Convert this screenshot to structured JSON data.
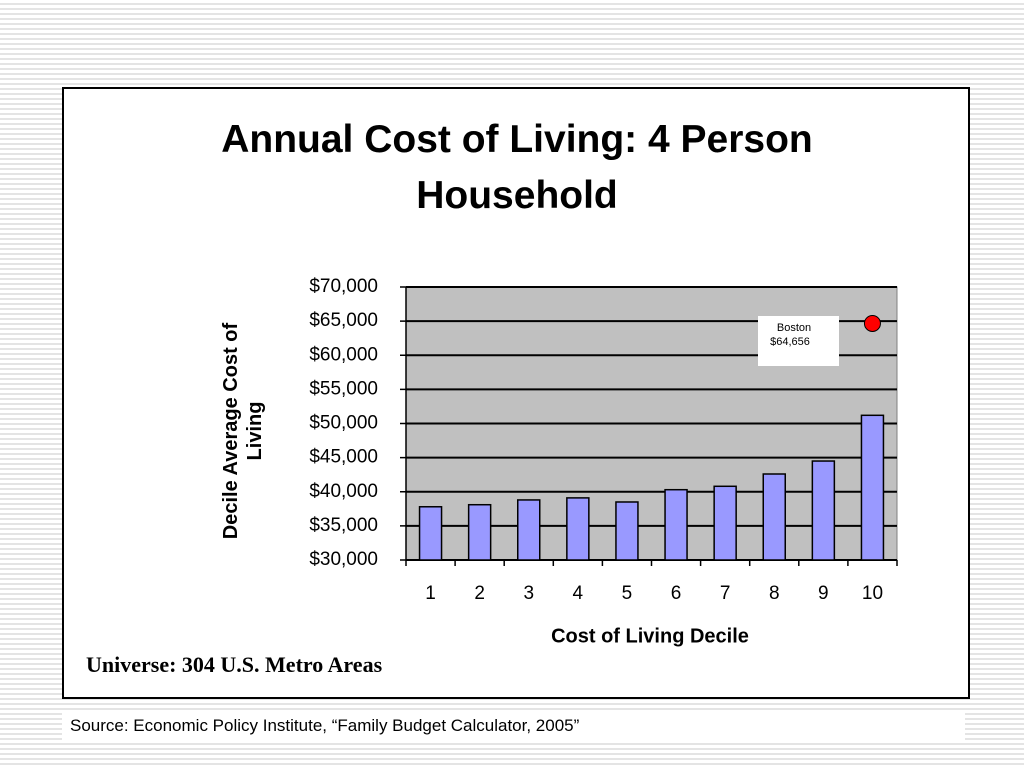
{
  "chart_data": {
    "type": "bar",
    "title": "Annual Cost of Living: 4 Person Household",
    "x_label": "Cost of Living Decile",
    "y_label": "Decile Average Cost of Living",
    "categories": [
      "1",
      "2",
      "3",
      "4",
      "5",
      "6",
      "7",
      "8",
      "9",
      "10"
    ],
    "values": [
      37800,
      38100,
      38800,
      39100,
      38500,
      40300,
      40800,
      42600,
      44500,
      51200
    ],
    "color": "#9999ff",
    "plot_background": "#c0c0c0",
    "ylim": [
      30000,
      70000
    ],
    "yticks": [
      {
        "value": 30000,
        "label": "$30,000"
      },
      {
        "value": 35000,
        "label": "$35,000"
      },
      {
        "value": 40000,
        "label": "$40,000"
      },
      {
        "value": 45000,
        "label": "$45,000"
      },
      {
        "value": 50000,
        "label": "$50,000"
      },
      {
        "value": 55000,
        "label": "$55,000"
      },
      {
        "value": 60000,
        "label": "$60,000"
      },
      {
        "value": 65000,
        "label": "$65,000"
      },
      {
        "value": 70000,
        "label": "$70,000"
      }
    ],
    "grid": true,
    "highlight": {
      "name": "Boston",
      "category_index": 9,
      "value": 64656,
      "value_label": "$64,656",
      "color": "#ff0000"
    },
    "note": "Universe: 304 U.S. Metro Areas"
  },
  "source": "Source: Economic Policy Institute, “Family Budget Calculator, 2005”"
}
